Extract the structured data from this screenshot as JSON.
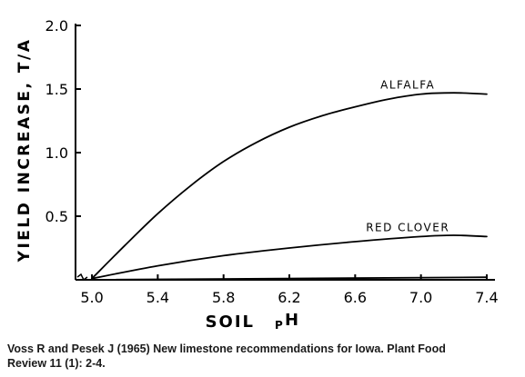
{
  "chart_data": {
    "type": "line",
    "title": "",
    "xlabel": "SOIL pH",
    "xlabel_main": "SOIL",
    "xlabel_sub": "P",
    "xlabel_sup": "H",
    "ylabel": "YIELD INCREASE, T/A",
    "xlim": [
      4.9,
      7.45
    ],
    "ylim": [
      0,
      2.0
    ],
    "xticks": [
      5.0,
      5.4,
      5.8,
      6.2,
      6.6,
      7.0,
      7.4
    ],
    "xtick_labels": [
      "5.0",
      "5.4",
      "5.8",
      "6.2",
      "6.6",
      "7.0",
      "7.4"
    ],
    "yticks": [
      0.5,
      1.0,
      1.5,
      2.0
    ],
    "ytick_labels": [
      "0.5",
      "1.0",
      "1.5",
      "2.0"
    ],
    "grid": false,
    "series": [
      {
        "name": "ALFALFA",
        "x": [
          5.0,
          5.2,
          5.4,
          5.6,
          5.8,
          6.0,
          6.2,
          6.4,
          6.6,
          6.8,
          7.0,
          7.2,
          7.4
        ],
        "y": [
          0.01,
          0.27,
          0.52,
          0.74,
          0.93,
          1.08,
          1.2,
          1.29,
          1.36,
          1.42,
          1.46,
          1.47,
          1.46
        ]
      },
      {
        "name": "RED CLOVER",
        "x": [
          5.0,
          5.4,
          5.8,
          6.2,
          6.6,
          7.0,
          7.2,
          7.4
        ],
        "y": [
          0.01,
          0.11,
          0.19,
          0.25,
          0.3,
          0.34,
          0.35,
          0.34
        ]
      },
      {
        "name": "",
        "x": [
          5.0,
          7.4
        ],
        "y": [
          0.0,
          0.02
        ]
      }
    ]
  },
  "caption": {
    "line1": "Voss R and Pesek J (1965) New limestone recommendations for Iowa. Plant Food",
    "line2": "Review 11 (1): 2-4."
  }
}
